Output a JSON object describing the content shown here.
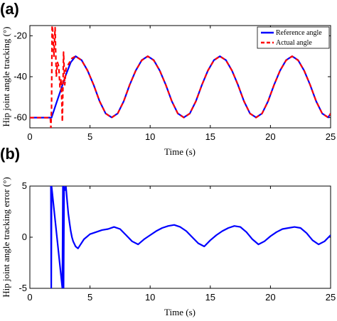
{
  "chart_data": [
    {
      "type": "line",
      "panel_label": "(a)",
      "xlabel": "Time (s)",
      "ylabel": "Hip joint angle tracking (°)",
      "xlim": [
        0,
        25
      ],
      "ylim": [
        -65,
        -15
      ],
      "xticks": [
        0,
        5,
        10,
        15,
        20,
        25
      ],
      "yticks": [
        -60,
        -40,
        -20
      ],
      "legend_position": "top-right",
      "series": [
        {
          "name": "Reference angle",
          "color": "#0000ff",
          "style": "solid",
          "x": [
            0,
            1.8,
            2.2,
            2.6,
            3.0,
            3.4,
            3.8,
            4.3,
            4.8,
            5.3,
            5.8,
            6.3,
            6.8,
            7.3,
            7.8,
            8.3,
            8.8,
            9.3,
            9.8,
            10.3,
            10.8,
            11.3,
            11.8,
            12.3,
            12.8,
            13.3,
            13.8,
            14.3,
            14.8,
            15.3,
            15.8,
            16.3,
            16.8,
            17.3,
            17.8,
            18.3,
            18.8,
            19.3,
            19.8,
            20.3,
            20.8,
            21.3,
            21.8,
            22.3,
            22.8,
            23.3,
            23.8,
            24.3,
            24.8,
            25
          ],
          "y": [
            -60,
            -60,
            -53,
            -46,
            -39,
            -33,
            -30,
            -31.9,
            -37,
            -44,
            -52,
            -58,
            -59.9,
            -58,
            -52,
            -44,
            -37,
            -31.9,
            -30,
            -31.9,
            -37,
            -44,
            -52,
            -58,
            -59.9,
            -58,
            -52,
            -44,
            -37,
            -31.9,
            -30,
            -31.9,
            -37,
            -44,
            -52,
            -58,
            -59.9,
            -58,
            -52,
            -44,
            -37,
            -31.9,
            -30,
            -31.9,
            -37,
            -44,
            -52,
            -58,
            -59.9,
            -58
          ]
        },
        {
          "name": "Actual angle",
          "color": "#ff0000",
          "style": "dashed",
          "x": [
            0,
            1.7,
            1.75,
            1.8,
            1.85,
            1.9,
            2.0,
            2.1,
            2.2,
            2.3,
            2.4,
            2.5,
            2.6,
            2.7,
            2.8,
            2.9,
            3.0,
            3.2,
            3.5,
            3.8,
            4.3,
            4.8,
            5.3,
            5.8,
            6.3,
            6.8,
            7.3,
            7.8,
            8.3,
            8.8,
            9.3,
            9.8,
            10.3,
            10.8,
            11.3,
            11.8,
            12.3,
            12.8,
            13.3,
            13.8,
            14.3,
            14.8,
            15.3,
            15.8,
            16.3,
            16.8,
            17.3,
            17.8,
            18.3,
            18.8,
            19.3,
            19.8,
            20.3,
            20.8,
            21.3,
            21.8,
            22.3,
            22.8,
            23.3,
            23.8,
            24.3,
            24.8,
            25
          ],
          "y": [
            -60,
            -60,
            -65,
            -55,
            -15,
            -17,
            -30,
            -16,
            -40,
            -33,
            -35,
            -45,
            -41,
            -62,
            -28,
            -44,
            -36,
            -34,
            -31,
            -30,
            -32,
            -37,
            -44,
            -52,
            -58,
            -60,
            -58,
            -52,
            -44,
            -37,
            -32,
            -30,
            -32,
            -37,
            -44,
            -52,
            -58,
            -60,
            -58,
            -52,
            -44,
            -37,
            -32,
            -30,
            -32,
            -37,
            -44,
            -52,
            -58,
            -60,
            -58,
            -52,
            -44,
            -37,
            -32,
            -30,
            -32,
            -37,
            -44,
            -52,
            -58,
            -60,
            -58
          ]
        }
      ]
    },
    {
      "type": "line",
      "panel_label": "(b)",
      "xlabel": "Time (s)",
      "ylabel": "Hip joint angle tracking error (°)",
      "xlim": [
        0,
        25
      ],
      "ylim": [
        -5,
        5
      ],
      "xticks": [
        0,
        5,
        10,
        15,
        20,
        25
      ],
      "yticks": [
        -5,
        0,
        5
      ],
      "series": [
        {
          "name": "",
          "color": "#0000ff",
          "style": "solid",
          "x": [
            1.75,
            1.78,
            1.8,
            2.7,
            2.75,
            2.8,
            2.85,
            2.9,
            3.0,
            3.1,
            3.2,
            3.3,
            3.4,
            3.5,
            3.6,
            3.8,
            4.0,
            4.5,
            5.0,
            5.5,
            6.0,
            6.5,
            7.0,
            7.5,
            8.0,
            8.5,
            9.0,
            9.5,
            10.0,
            10.5,
            11.0,
            11.5,
            12.0,
            12.5,
            13.0,
            13.5,
            14.0,
            14.5,
            15.0,
            15.5,
            16.0,
            16.5,
            17.0,
            17.5,
            18.0,
            18.5,
            19.0,
            19.5,
            20.0,
            20.5,
            21.0,
            21.5,
            22.0,
            22.5,
            23.0,
            23.5,
            24.0,
            24.5,
            25.0
          ],
          "y": [
            5,
            -5,
            5,
            -5,
            5,
            -5,
            5,
            4.6,
            4.9,
            3.5,
            2.3,
            1.4,
            0.6,
            0.0,
            -0.4,
            -0.9,
            -1.1,
            -0.2,
            0.3,
            0.5,
            0.7,
            0.8,
            1.0,
            0.8,
            0.2,
            -0.4,
            -0.7,
            -0.2,
            0.2,
            0.6,
            0.9,
            1.1,
            1.2,
            1.0,
            0.6,
            0.0,
            -0.6,
            -0.9,
            -0.3,
            0.2,
            0.6,
            0.9,
            1.1,
            1.0,
            0.5,
            -0.2,
            -0.7,
            -0.4,
            0.1,
            0.5,
            0.8,
            0.9,
            1.0,
            0.9,
            0.4,
            -0.3,
            -0.7,
            -0.4,
            0.2
          ]
        }
      ]
    }
  ]
}
